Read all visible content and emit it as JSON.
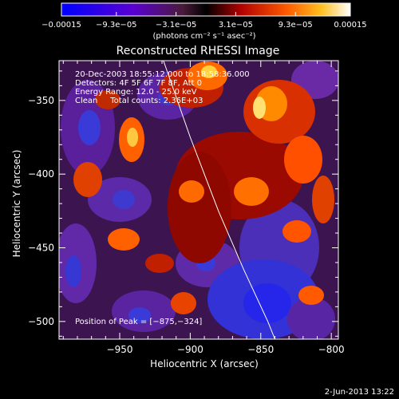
{
  "chart_data": {
    "type": "heatmap",
    "title": "Reconstructed RHESSI Image",
    "xlabel": "Heliocentric X (arcsec)",
    "ylabel": "Heliocentric Y (arcsec)",
    "xlim": [
      -993,
      -795
    ],
    "ylim": [
      -512,
      -323
    ],
    "x_ticks": [
      -950,
      -900,
      -850,
      -800
    ],
    "x_tick_labels": [
      "−950",
      "−900",
      "−850",
      "−800"
    ],
    "y_ticks": [
      -500,
      -450,
      -400,
      -350
    ],
    "y_tick_labels": [
      "−500",
      "−450",
      "−400",
      "−350"
    ],
    "colorbar": {
      "range": [
        -0.00015,
        0.00015
      ],
      "tick_values": [
        -0.00015,
        -9.3e-05,
        -3.1e-05,
        3.1e-05,
        9.3e-05,
        0.00015
      ],
      "tick_labels": [
        "−0.00015",
        "−9.3e−05",
        "−3.1e−05",
        "3.1e−05",
        "9.3e−05",
        "0.00015"
      ],
      "units": "(photons cm⁻² s⁻¹ asec⁻²)"
    },
    "annotations": [
      "20-Dec-2003 18:55:12.000 to 18:58:36.000",
      "Detectors: 4F 5F 6F 7F 8F, Att 0",
      "Energy Range: 12.0 - 25.0 keV",
      "Clean     Total counts: 2.36E+03"
    ],
    "peak": {
      "label": "Position of Peak = [−875,−324]",
      "x": -875,
      "y": -324
    },
    "limb": [
      [
        -919,
        -323
      ],
      [
        -900,
        -375
      ],
      [
        -880,
        -425
      ],
      [
        -862,
        -465
      ],
      [
        -845,
        -500
      ],
      [
        -840,
        -512
      ]
    ],
    "colors": {
      "limb": "#ffffff",
      "background": "#000000",
      "text": "#ffffff"
    }
  },
  "footer_date": "2-Jun-2013 13:22"
}
